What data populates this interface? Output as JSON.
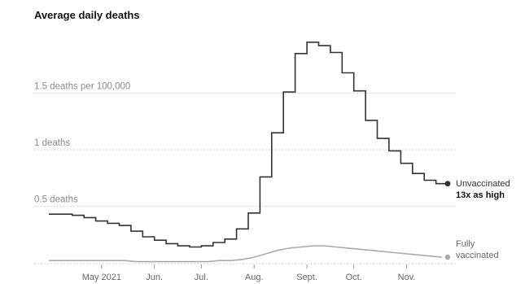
{
  "chart_data": {
    "type": "line",
    "title": "Average daily deaths",
    "ylim": [
      0,
      2
    ],
    "y_ticks": [
      {
        "value": 0.5,
        "label": "0.5 deaths"
      },
      {
        "value": 1,
        "label": "1 deaths"
      },
      {
        "value": 1.5,
        "label": "1.5 deaths per 100,000"
      }
    ],
    "x_ticks": [
      {
        "week": 4.5,
        "label": "May 2021"
      },
      {
        "week": 9,
        "label": "Jun."
      },
      {
        "week": 13,
        "label": "Jul."
      },
      {
        "week": 17.5,
        "label": "Aug."
      },
      {
        "week": 22,
        "label": "Sept."
      },
      {
        "week": 26,
        "label": "Oct."
      },
      {
        "week": 30.5,
        "label": "Nov."
      }
    ],
    "grid": "horizontal dotted",
    "series": [
      {
        "name": "Unvaccinated",
        "style": "step",
        "color": "#333333",
        "values": [
          0.43,
          0.43,
          0.42,
          0.4,
          0.37,
          0.35,
          0.33,
          0.28,
          0.23,
          0.2,
          0.17,
          0.15,
          0.14,
          0.15,
          0.18,
          0.21,
          0.3,
          0.44,
          0.76,
          1.15,
          1.51,
          1.85,
          1.95,
          1.92,
          1.86,
          1.68,
          1.52,
          1.26,
          1.1,
          0.99,
          0.88,
          0.79,
          0.73,
          0.7
        ]
      },
      {
        "name": "Fully vaccinated",
        "style": "line",
        "color": "#aaaaaa",
        "values": [
          0.02,
          0.02,
          0.02,
          0.02,
          0.02,
          0.02,
          0.02,
          0.01,
          0.01,
          0.01,
          0.01,
          0.01,
          0.01,
          0.01,
          0.02,
          0.02,
          0.03,
          0.05,
          0.08,
          0.11,
          0.13,
          0.14,
          0.15,
          0.15,
          0.14,
          0.13,
          0.12,
          0.11,
          0.1,
          0.09,
          0.08,
          0.07,
          0.06,
          0.05
        ]
      }
    ],
    "annotations": {
      "unvaccinated_label": "Unvaccinated",
      "ratio_label": "13x as high",
      "vaccinated_line1": "Fully",
      "vaccinated_line2": "vaccinated"
    }
  }
}
